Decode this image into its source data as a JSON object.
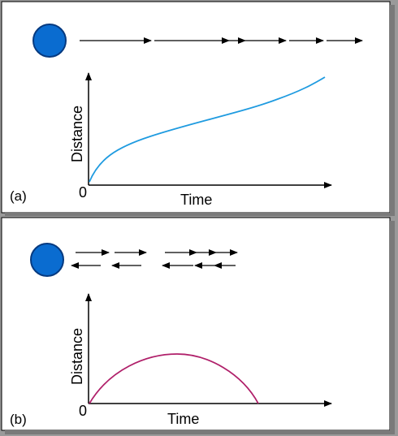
{
  "colors": {
    "panel_bg": "#ffffff",
    "panel_border": "#000000",
    "frame_gray": "#999999",
    "ball_fill": "#0a6cd0",
    "ball_stroke": "#0a3a80",
    "curve_a": "#1f9be0",
    "curve_b": "#b0206a"
  },
  "panels": [
    {
      "label": "(a)",
      "motion": "constant-direction",
      "axis_y_label": "Distance",
      "axis_x_label": "Time",
      "origin_label": "0",
      "chart_data": {
        "type": "line",
        "curve_shape": "increasing-concave",
        "title": "",
        "xlabel": "Time",
        "ylabel": "Distance"
      }
    },
    {
      "label": "(b)",
      "motion": "back-and-forth",
      "axis_y_label": "Distance",
      "axis_x_label": "Time",
      "origin_label": "0",
      "chart_data": {
        "type": "line",
        "curve_shape": "arch-returns-to-zero",
        "title": "",
        "xlabel": "Time",
        "ylabel": "Distance"
      }
    }
  ]
}
